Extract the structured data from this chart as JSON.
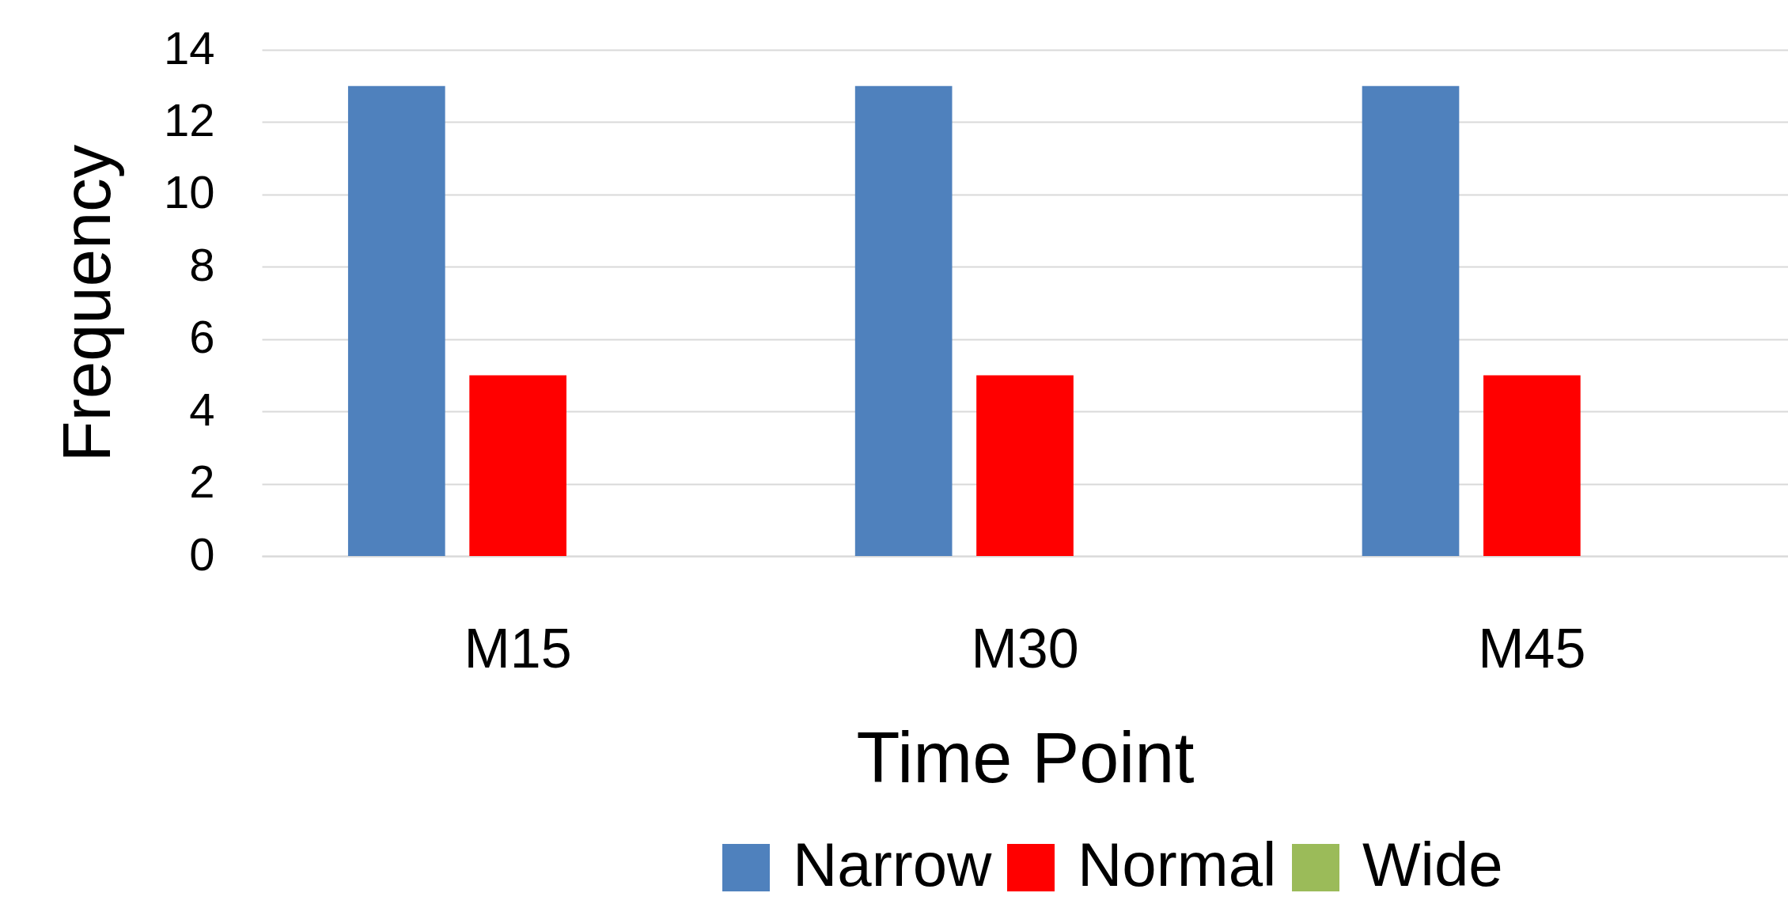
{
  "chart_data": {
    "type": "bar",
    "xlabel": "Time Point",
    "ylabel": "Frequency",
    "categories": [
      "M15",
      "M30",
      "M45"
    ],
    "series": [
      {
        "name": "Narrow",
        "color": "#4f81bd",
        "values": [
          13,
          13,
          13
        ]
      },
      {
        "name": "Normal",
        "color": "#ff0000",
        "values": [
          5,
          5,
          5
        ]
      },
      {
        "name": "Wide",
        "color": "#9bbb59",
        "values": [
          0,
          0,
          0
        ]
      }
    ],
    "ylim": [
      0,
      14
    ],
    "yticks": [
      0,
      2,
      4,
      6,
      8,
      10,
      12,
      14
    ],
    "grid": "y",
    "legend": "bottom right"
  }
}
